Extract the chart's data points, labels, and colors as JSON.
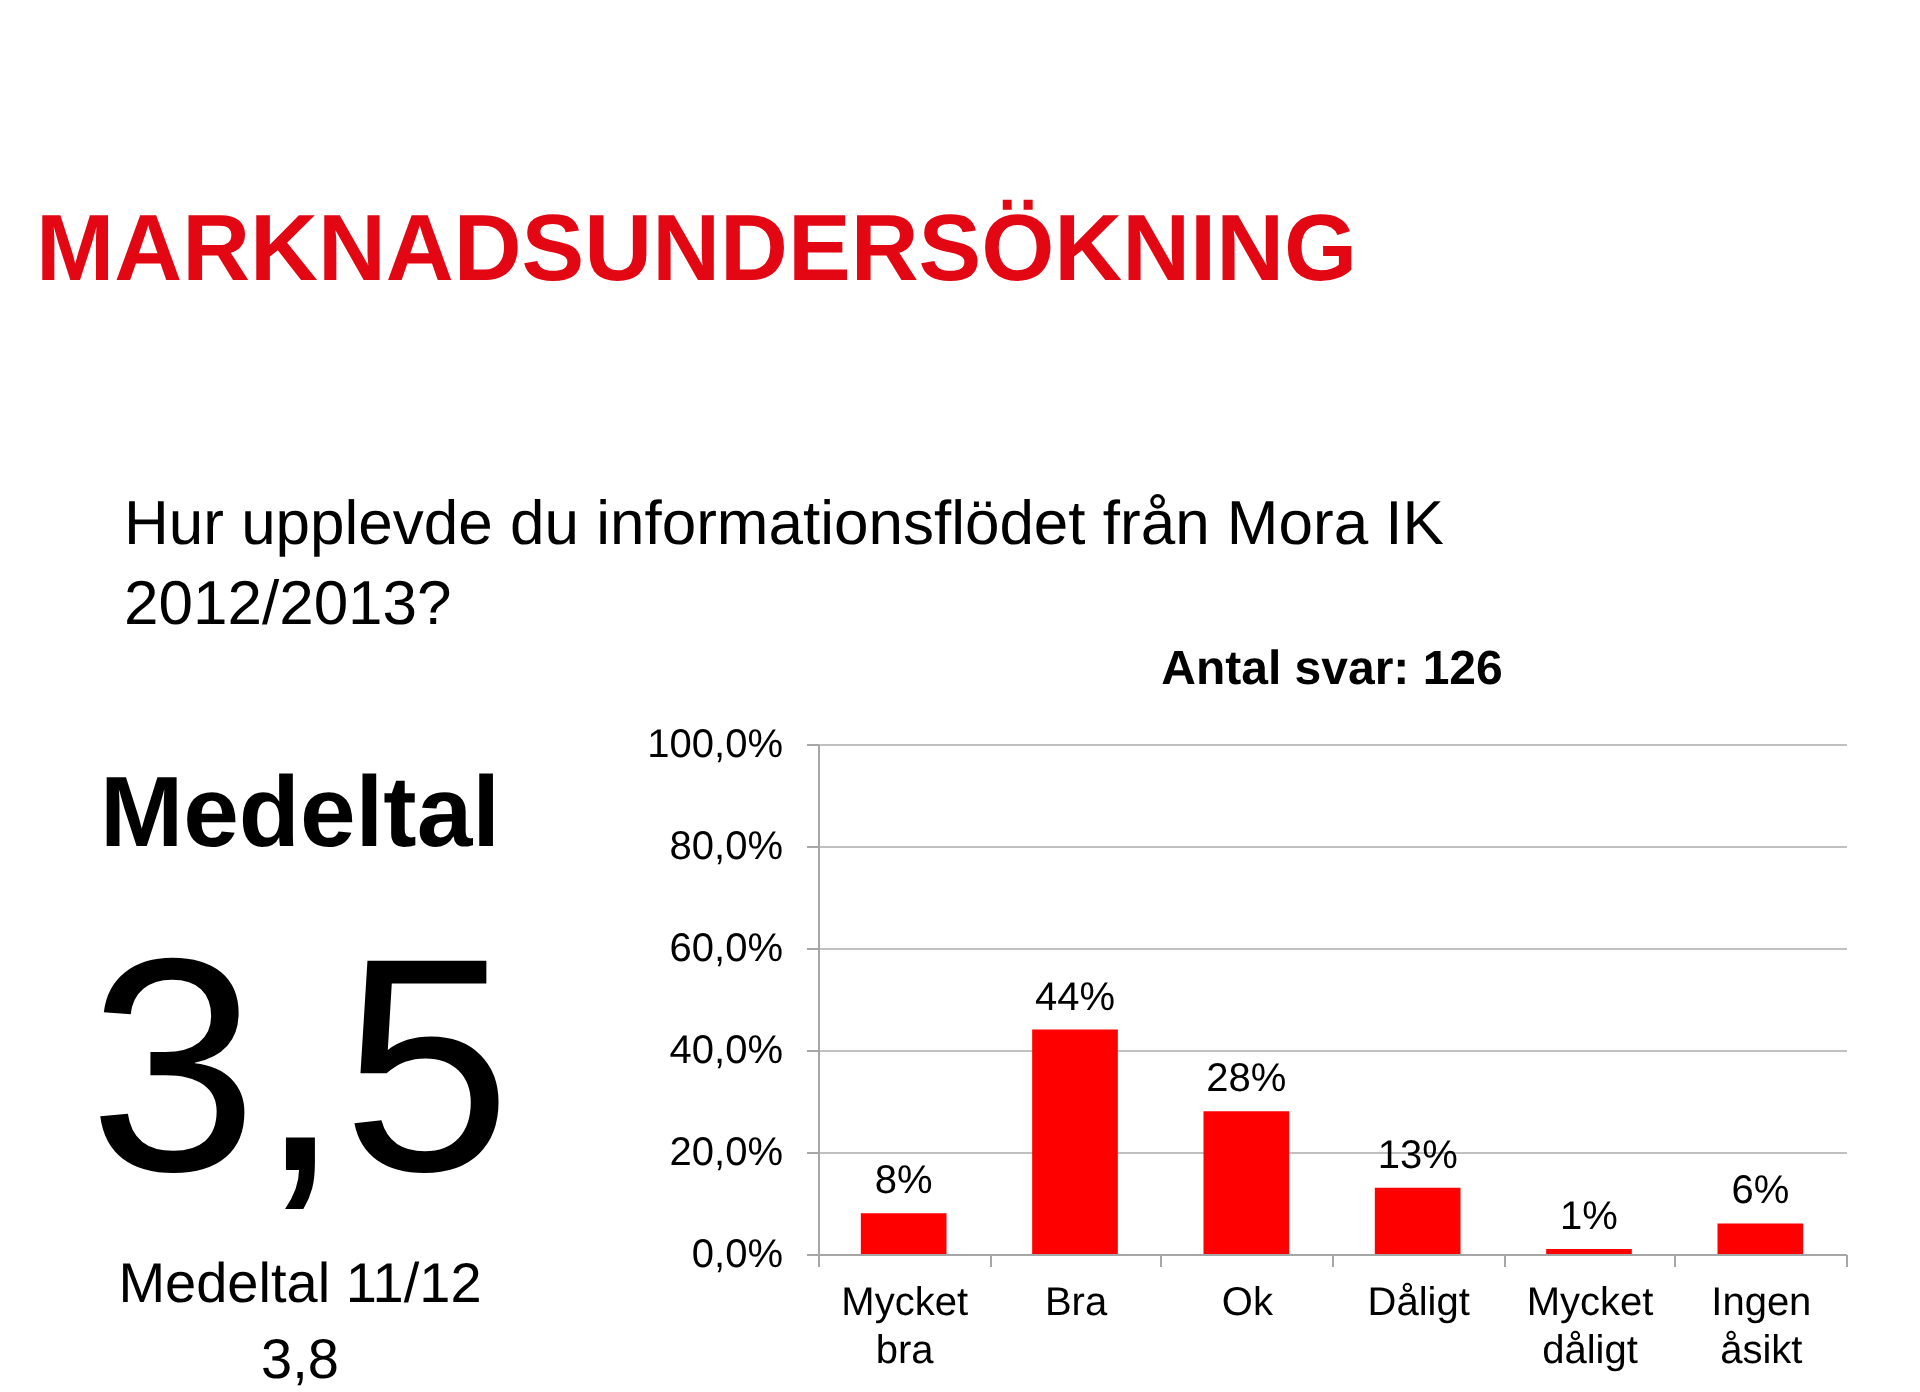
{
  "chart_data": {
    "type": "bar",
    "title": "Hur upplevde du informationsflödet från Mora IK 2012/2013?",
    "subtitle": "Antal svar: 126",
    "categories": [
      "Mycket bra",
      "Bra",
      "Ok",
      "Dåligt",
      "Mycket dåligt",
      "Ingen åsikt"
    ],
    "values": [
      8,
      44,
      28,
      13,
      1,
      6
    ],
    "value_labels": [
      "8%",
      "44%",
      "28%",
      "13%",
      "1%",
      "6%"
    ],
    "color": "#ff0000",
    "ylim": [
      0,
      100
    ],
    "yticks": [
      {
        "value": 0,
        "label": "0,0%"
      },
      {
        "value": 20,
        "label": "20,0%"
      },
      {
        "value": 40,
        "label": "40,0%"
      },
      {
        "value": 60,
        "label": "60,0%"
      },
      {
        "value": 80,
        "label": "80,0%"
      },
      {
        "value": 100,
        "label": "100,0%"
      }
    ],
    "grid": "y",
    "annotations": [
      "MARKNADSUNDERSÖKNING",
      "Medeltal",
      "3,5",
      "Medeltal 11/12",
      "3,8"
    ]
  }
}
